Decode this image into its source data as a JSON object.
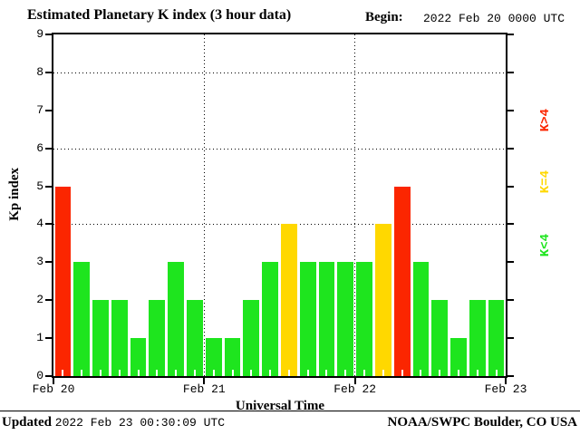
{
  "header": {
    "title": "Estimated Planetary K index (3 hour data)",
    "begin_label": "Begin:",
    "begin_value": "2022 Feb 20 0000 UTC"
  },
  "y_axis": {
    "title": "Kp index",
    "tick_labels": [
      "0",
      "1",
      "2",
      "3",
      "4",
      "5",
      "6",
      "7",
      "8",
      "9"
    ]
  },
  "x_axis": {
    "title": "Universal Time",
    "tick_labels": [
      "Feb 20",
      "Feb 21",
      "Feb 22",
      "Feb 23"
    ]
  },
  "legend": {
    "high": {
      "label": "K>4",
      "color": "#fb2600"
    },
    "equal": {
      "label": "K=4",
      "color": "#ffd800"
    },
    "low": {
      "label": "K<4",
      "color": "#1ee51e"
    }
  },
  "footer": {
    "updated_label": "Updated",
    "updated_value": "2022 Feb 23 00:30:09 UTC",
    "source": "NOAA/SWPC Boulder, CO USA"
  },
  "chart_data": {
    "type": "bar",
    "title": "Estimated Planetary K index (3 hour data)",
    "begin": "2022 Feb 20 0000 UTC",
    "ylabel": "Kp index",
    "xlabel": "Universal Time",
    "ylim": [
      0,
      9
    ],
    "hours_per_bar": 3,
    "x_day_labels": [
      "Feb 20",
      "Feb 21",
      "Feb 22",
      "Feb 23"
    ],
    "values": [
      5,
      3,
      2,
      2,
      1,
      2,
      3,
      2,
      1,
      1,
      2,
      3,
      4,
      3,
      3,
      3,
      3,
      4,
      5,
      3,
      2,
      1,
      2,
      2
    ],
    "color_rule": {
      "green": "K<4",
      "yellow": "K=4",
      "red": "K>4"
    },
    "bar_colors": {
      "green": "#1ee51e",
      "yellow": "#ffd800",
      "red": "#fb2600"
    },
    "gridlines_y": [
      4,
      6,
      8
    ],
    "grid_style": "dotted",
    "legend_position": "right"
  }
}
